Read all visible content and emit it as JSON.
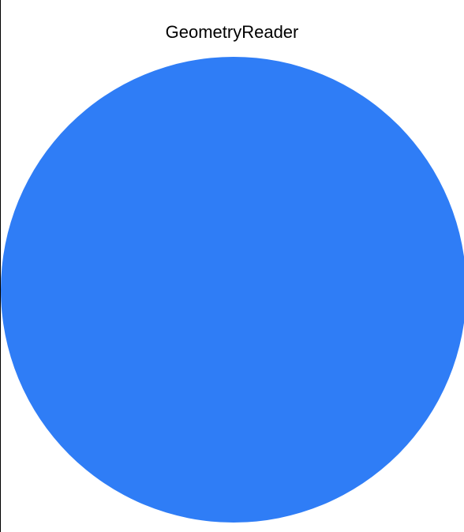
{
  "title": "GeometryReader",
  "circle": {
    "color": "#2F7DF6"
  }
}
